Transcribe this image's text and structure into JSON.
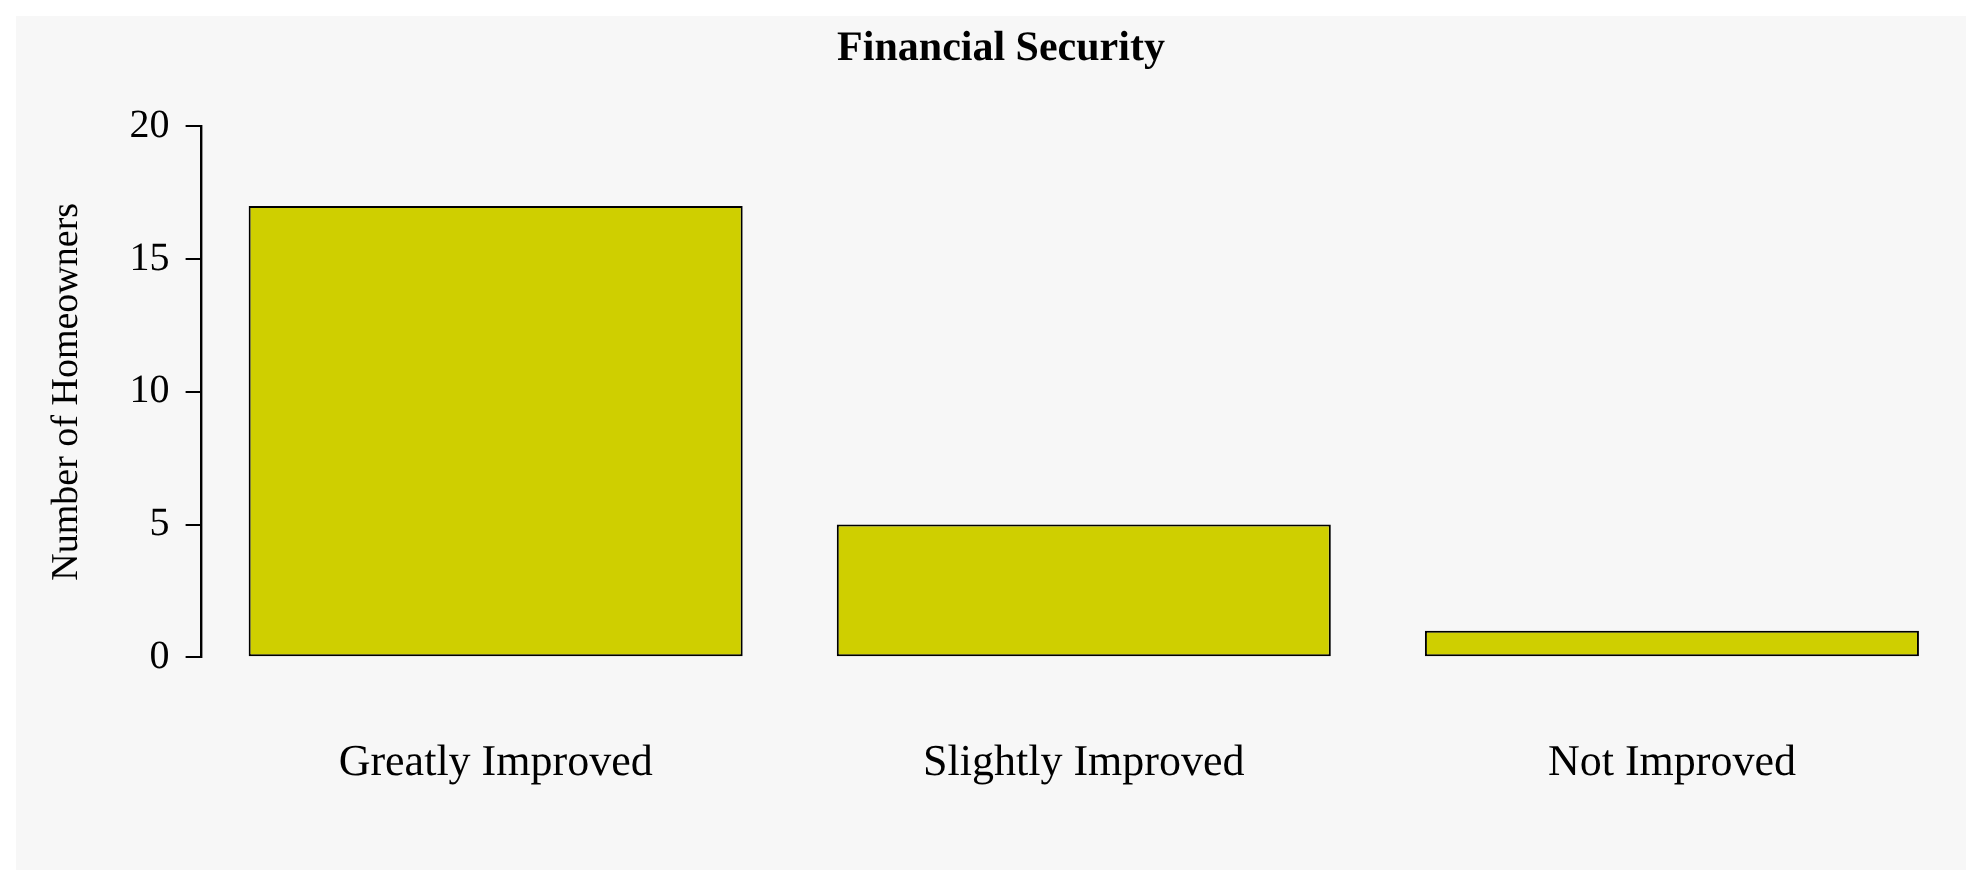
{
  "chart_data": {
    "type": "bar",
    "title": "Financial Security",
    "ylabel": "Number of Homeowners",
    "categories": [
      "Greatly Improved",
      "Slightly Improved",
      "Not Improved"
    ],
    "values": [
      17,
      5,
      1
    ],
    "color": "#cfcf00",
    "ylim": [
      0,
      20
    ],
    "yticks": [
      0,
      5,
      10,
      15,
      20
    ],
    "grid": false,
    "legend": false
  }
}
